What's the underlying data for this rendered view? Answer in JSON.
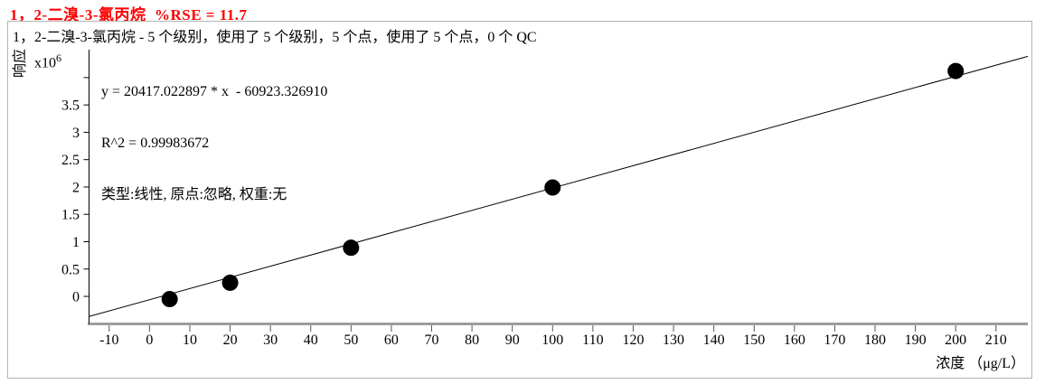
{
  "colors": {
    "title": "#ff0000",
    "axis_gray": "#9c9c9c",
    "panel_border": "#b3b3b3",
    "series": "#000000"
  },
  "chart_data": {
    "type": "scatter",
    "title": "1，2-二溴-3-氯丙烷  %RSE = 11.7",
    "compound": "1，2-二溴-3-氯丙烷",
    "rse_percent": 11.7,
    "subtitle": "1，2-二溴-3-氯丙烷 - 5 个级别，使用了 5 个级别，5 个点，使用了 5 个点，0 个 QC",
    "levels": 5,
    "levels_used": 5,
    "points": 5,
    "points_used": 5,
    "qc_count": 0,
    "xlabel": "浓度 （μg/L）",
    "ylabel": "响应",
    "y_multiplier": {
      "base": "x10",
      "exponent": "6"
    },
    "xlim": [
      -15,
      217.9
    ],
    "ylim_x1e6": [
      -0.5,
      4.51
    ],
    "x_ticks": [
      -10,
      0,
      10,
      20,
      30,
      40,
      50,
      60,
      70,
      80,
      90,
      100,
      110,
      120,
      130,
      140,
      150,
      160,
      170,
      180,
      190,
      200,
      210
    ],
    "y_ticks": [
      {
        "v": 0,
        "label": "0"
      },
      {
        "v": 0.5,
        "label": "0.5"
      },
      {
        "v": 1,
        "label": "1"
      },
      {
        "v": 1.5,
        "label": "1.5"
      },
      {
        "v": 2,
        "label": "2"
      },
      {
        "v": 2.5,
        "label": "2.5"
      },
      {
        "v": 3,
        "label": "3"
      },
      {
        "v": 3.5,
        "label": "3.5"
      },
      {
        "v": 4,
        "label": ""
      }
    ],
    "concentrations": [
      5,
      20,
      50,
      100,
      200
    ],
    "responses_x1e6": [
      -0.05,
      0.25,
      0.89,
      1.99,
      4.12
    ],
    "fit": {
      "equation_text": "y = 20417.022897 * x  - 60923.326910",
      "r2_text": "R^2 = 0.99983672",
      "settings_text": "类型:线性, 原点:忽略, 权重:无",
      "slope": 20417.022897,
      "intercept": -60923.32691,
      "r2": 0.99983672,
      "fit_type": "线性",
      "origin": "忽略",
      "weight": "无"
    },
    "grid": false,
    "legend": false
  }
}
